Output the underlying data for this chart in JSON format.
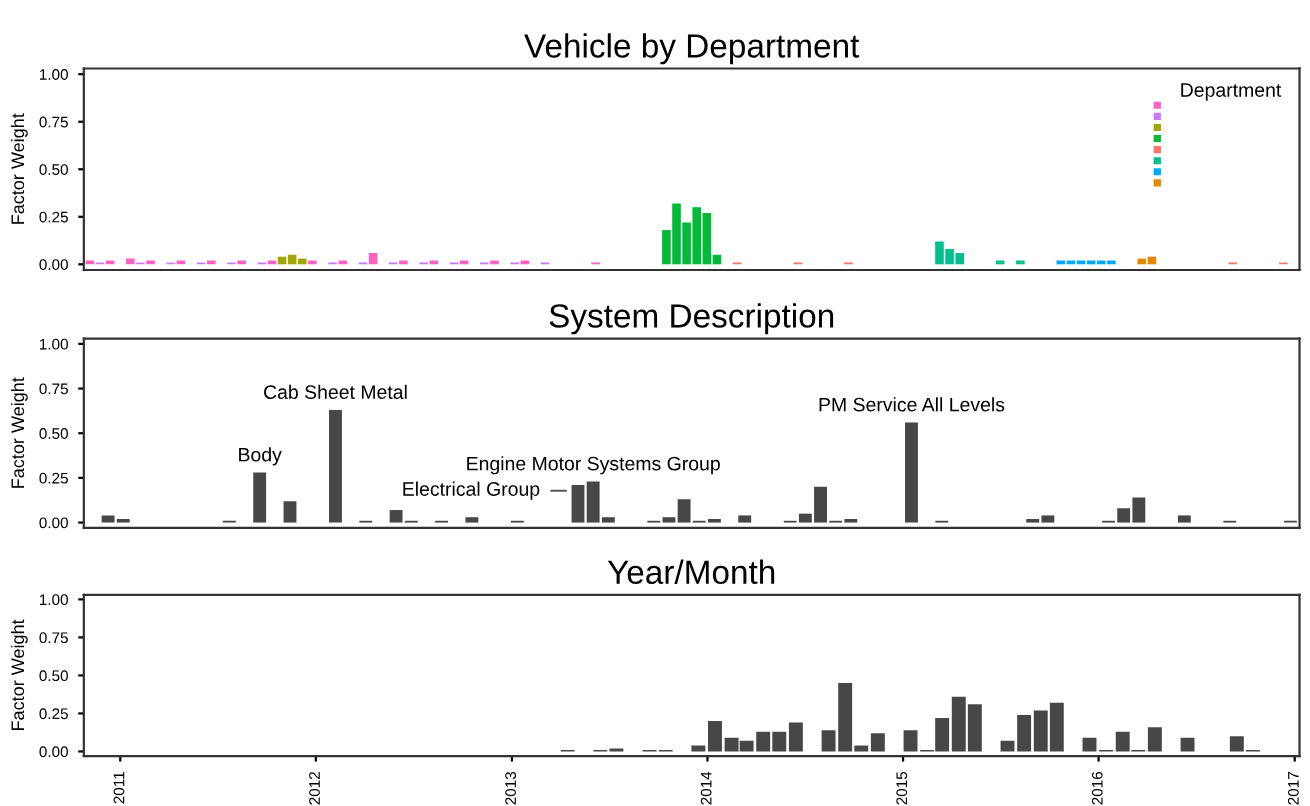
{
  "chart_data": [
    {
      "type": "bar",
      "title": "Vehicle by Department",
      "ylabel": "Factor Weight",
      "annotations": [
        "Department"
      ],
      "grid": false,
      "tick_labels": "y",
      "categories": [
        null,
        null,
        null,
        null,
        null,
        null,
        null,
        null,
        null,
        null,
        null,
        null,
        null,
        null,
        null,
        null,
        null,
        null,
        null,
        null,
        null,
        null,
        null,
        null,
        null,
        null,
        null,
        null,
        null,
        null,
        null,
        null,
        null,
        null,
        null,
        null,
        null,
        null,
        null,
        null,
        null,
        null,
        null,
        null,
        null,
        null,
        null,
        null,
        null,
        null,
        null,
        null,
        null,
        null,
        null,
        null,
        null,
        null,
        null,
        null,
        null,
        null,
        null,
        null,
        null,
        null,
        null,
        null,
        null,
        null,
        null,
        null,
        null,
        null,
        null,
        null,
        null,
        null,
        null,
        null,
        null,
        null,
        null,
        null,
        null,
        null,
        null,
        null,
        null,
        null,
        null,
        null,
        null,
        null,
        null,
        null,
        null,
        null,
        null,
        null,
        null,
        null,
        null,
        null,
        null,
        null,
        null,
        null,
        null,
        null,
        null,
        null,
        null,
        null,
        null,
        null,
        null,
        null,
        null,
        null
      ],
      "values": [
        0.02,
        0.01,
        0.02,
        null,
        0.03,
        0.01,
        0.02,
        null,
        0.01,
        0.02,
        null,
        0.01,
        0.02,
        null,
        0.01,
        0.02,
        null,
        0.01,
        0.02,
        0.04,
        0.05,
        0.03,
        0.02,
        null,
        0.01,
        0.02,
        null,
        0.01,
        0.06,
        null,
        0.01,
        0.02,
        null,
        0.01,
        0.02,
        null,
        0.01,
        0.02,
        null,
        0.01,
        0.02,
        null,
        0.01,
        0.02,
        null,
        0.01,
        null,
        null,
        null,
        null,
        0.01,
        null,
        null,
        null,
        null,
        null,
        null,
        0.18,
        0.32,
        0.22,
        0.3,
        0.27,
        0.05,
        null,
        0.01,
        null,
        null,
        null,
        null,
        null,
        0.01,
        null,
        null,
        null,
        null,
        0.01,
        null,
        null,
        null,
        null,
        null,
        null,
        null,
        null,
        0.12,
        0.08,
        0.06,
        null,
        null,
        null,
        0.02,
        null,
        0.02,
        null,
        null,
        null,
        0.02,
        0.02,
        0.02,
        0.02,
        0.02,
        0.02,
        null,
        null,
        0.03,
        0.04,
        null,
        null,
        null,
        null,
        null,
        null,
        null,
        0.01,
        null,
        null,
        null,
        null,
        0.01,
        null
      ],
      "colors": [
        "#ff61c3",
        "#c77cff",
        "#ff61c3",
        null,
        "#ff61c3",
        "#c77cff",
        "#ff61c3",
        null,
        "#c77cff",
        "#ff61c3",
        null,
        "#c77cff",
        "#ff61c3",
        null,
        "#c77cff",
        "#ff61c3",
        null,
        "#c77cff",
        "#ff61c3",
        "#a3a500",
        "#a3a500",
        "#a3a500",
        "#ff61c3",
        null,
        "#c77cff",
        "#ff61c3",
        null,
        "#c77cff",
        "#ff61c3",
        null,
        "#c77cff",
        "#ff61c3",
        null,
        "#c77cff",
        "#ff61c3",
        null,
        "#c77cff",
        "#ff61c3",
        null,
        "#c77cff",
        "#ff61c3",
        null,
        "#c77cff",
        "#ff61c3",
        null,
        "#c77cff",
        null,
        null,
        null,
        null,
        "#ff61c3",
        null,
        null,
        null,
        null,
        null,
        null,
        "#00ba38",
        "#00ba38",
        "#00ba38",
        "#00ba38",
        "#00ba38",
        "#00ba38",
        null,
        "#f8766d",
        null,
        null,
        null,
        null,
        null,
        "#f8766d",
        null,
        null,
        null,
        null,
        "#f8766d",
        null,
        null,
        null,
        null,
        null,
        null,
        null,
        null,
        "#00c08b",
        "#00c08b",
        "#00c08b",
        null,
        null,
        null,
        "#00c08b",
        null,
        "#00c08b",
        null,
        null,
        null,
        "#00a9ff",
        "#00a9ff",
        "#00a9ff",
        "#00a9ff",
        "#00a9ff",
        "#00a9ff",
        null,
        null,
        "#e58700",
        "#e58700",
        null,
        null,
        null,
        null,
        null,
        null,
        null,
        "#f8766d",
        null,
        null,
        null,
        null,
        "#f8766d",
        null
      ],
      "ylim": [
        -0.03,
        1.03
      ],
      "yticks": [
        {
          "value": 0,
          "label": "0.00"
        },
        {
          "value": 0.25,
          "label": "0.25"
        },
        {
          "value": 0.5,
          "label": "0.50"
        },
        {
          "value": 0.75,
          "label": "0.75"
        },
        {
          "value": 1,
          "label": "1.00"
        }
      ]
    },
    {
      "type": "bar",
      "title": "System Description",
      "ylabel": "Factor Weight",
      "grid": false,
      "tick_labels": "y",
      "color": "#474747",
      "categories": [
        null,
        null,
        null,
        null,
        null,
        null,
        null,
        null,
        null,
        null,
        null,
        null,
        null,
        null,
        null,
        null,
        null,
        null,
        null,
        null,
        null,
        null,
        null,
        null,
        null,
        null,
        null,
        null,
        null,
        null,
        null,
        null,
        null,
        null,
        null,
        null,
        null,
        null,
        null,
        null,
        null,
        null,
        null,
        null,
        null,
        null,
        null,
        null,
        null,
        null,
        null,
        null,
        null,
        null,
        null,
        null,
        null,
        null,
        null,
        null,
        null,
        null,
        null,
        null,
        null,
        null,
        null,
        null,
        null,
        null,
        null,
        null,
        null,
        null,
        null,
        null,
        null,
        null,
        null,
        null
      ],
      "values": [
        null,
        0.04,
        0.02,
        null,
        null,
        null,
        null,
        null,
        null,
        0.01,
        null,
        0.28,
        null,
        0.12,
        null,
        null,
        0.63,
        null,
        0.01,
        null,
        0.07,
        0.01,
        null,
        0.01,
        null,
        0.03,
        null,
        null,
        0.01,
        null,
        null,
        null,
        0.21,
        0.23,
        0.03,
        null,
        null,
        0.01,
        0.03,
        0.13,
        0.01,
        0.02,
        null,
        0.04,
        null,
        null,
        0.01,
        0.05,
        0.2,
        0.01,
        0.02,
        null,
        null,
        null,
        0.56,
        null,
        0.01,
        null,
        null,
        null,
        null,
        null,
        0.02,
        0.04,
        null,
        null,
        null,
        0.01,
        0.08,
        0.14,
        null,
        null,
        0.04,
        null,
        null,
        0.01,
        null,
        null,
        null,
        0.01
      ],
      "value_labels": [
        null,
        null,
        null,
        null,
        null,
        null,
        null,
        null,
        null,
        null,
        null,
        "Body",
        null,
        null,
        null,
        null,
        "Cab Sheet Metal",
        null,
        null,
        null,
        null,
        null,
        null,
        null,
        null,
        null,
        null,
        null,
        null,
        null,
        null,
        null,
        "Electrical Group",
        "Engine Motor Systems Group",
        null,
        null,
        null,
        null,
        null,
        null,
        null,
        null,
        null,
        null,
        null,
        null,
        null,
        null,
        null,
        null,
        null,
        null,
        null,
        null,
        "PM Service All Levels",
        null,
        null,
        null,
        null,
        null,
        null,
        null,
        null,
        null,
        null,
        null,
        null,
        null,
        null,
        null,
        null,
        null,
        null,
        null,
        null,
        null,
        null,
        null,
        null,
        null
      ],
      "ylim": [
        -0.03,
        1.03
      ],
      "yticks": [
        {
          "value": 0,
          "label": "0.00"
        },
        {
          "value": 0.25,
          "label": "0.25"
        },
        {
          "value": 0.5,
          "label": "0.50"
        },
        {
          "value": 0.75,
          "label": "0.75"
        },
        {
          "value": 1,
          "label": "1.00"
        }
      ]
    },
    {
      "type": "bar",
      "title": "Year/Month",
      "ylabel": "Factor Weight",
      "grid": false,
      "color": "#474747",
      "x": [
        "2013-04-15",
        "2013-06-15",
        "2013-07-15",
        "2013-09-15",
        "2013-10-15",
        "2013-12-15",
        "2014-01-15",
        "2014-02-15",
        "2014-03-15",
        "2014-04-15",
        "2014-05-15",
        "2014-06-15",
        "2014-08-15",
        "2014-09-15",
        "2014-10-15",
        "2014-11-15",
        "2015-01-15",
        "2015-02-15",
        "2015-03-15",
        "2015-04-15",
        "2015-05-15",
        "2015-07-15",
        "2015-08-15",
        "2015-09-15",
        "2015-10-15",
        "2015-12-15",
        "2016-01-15",
        "2016-02-15",
        "2016-03-15",
        "2016-04-15",
        "2016-06-15",
        "2016-09-15",
        "2016-10-15"
      ],
      "values": [
        0.01,
        0.01,
        0.02,
        0.01,
        0.01,
        0.04,
        0.2,
        0.09,
        0.07,
        0.13,
        0.13,
        0.19,
        0.14,
        0.45,
        0.04,
        0.12,
        0.14,
        0.01,
        0.22,
        0.36,
        0.31,
        0.07,
        0.24,
        0.27,
        0.32,
        0.09,
        0.01,
        0.13,
        0.01,
        0.16,
        0.09,
        0.1,
        0.01
      ],
      "xlim": [
        "2010-10-25",
        "2017-01-10"
      ],
      "xticks": [
        "2011",
        "2012",
        "2013",
        "2014",
        "2015",
        "2016",
        "2017"
      ],
      "ylim": [
        -0.03,
        1.03
      ],
      "yticks": [
        {
          "value": 0,
          "label": "0.00"
        },
        {
          "value": 0.25,
          "label": "0.25"
        },
        {
          "value": 0.5,
          "label": "0.50"
        },
        {
          "value": 0.75,
          "label": "0.75"
        },
        {
          "value": 1,
          "label": "1.00"
        }
      ]
    }
  ]
}
